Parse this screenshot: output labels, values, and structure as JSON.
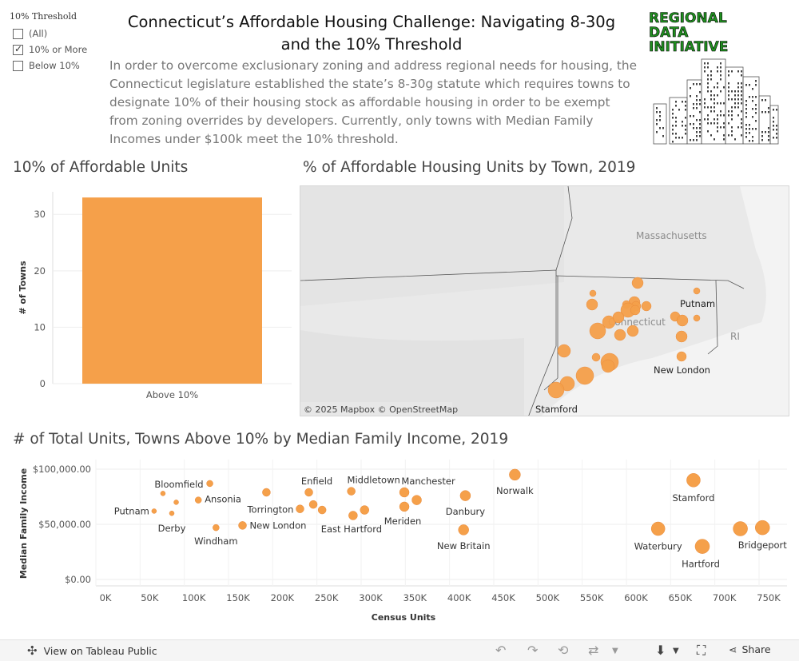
{
  "filter": {
    "title": "10% Threshold",
    "options": [
      {
        "label": "(All)",
        "checked": false
      },
      {
        "label": "10% or More",
        "checked": true
      },
      {
        "label": "Below 10%",
        "checked": false
      }
    ]
  },
  "header": {
    "title": "Connecticut’s Affordable Housing Challenge: Navigating 8-30g and the 10% Threshold",
    "intro": "In order to overcome exclusionary zoning and address regional needs for housing, the Connecticut legislature established the state’s 8-30g statute which requires towns to designate 10% of their housing stock as affordable housing in order to be exempt from zoning overrides by developers. Currently, only towns with Median Family Incomes under $100k meet the 10% threshold.",
    "logo_lines": [
      "REGIONAL",
      "DATA",
      "INITIATIVE"
    ]
  },
  "sections": {
    "bar_title": "10% of Affordable Units",
    "map_title": "% of Affordable Housing Units by Town, 2019",
    "scatter_title": "# of Total Units, Towns Above 10% by Median Family Income, 2019"
  },
  "colors": {
    "accent": "#f5a04a",
    "accent_dark": "#e8893a",
    "map_bg": "#e9e9e9"
  },
  "chart_data": [
    {
      "type": "bar",
      "categories": [
        "Above 10%"
      ],
      "values": [
        33
      ],
      "ylabel": "# of Towns",
      "xlabel": "",
      "ylim": [
        0,
        34
      ],
      "yticks": [
        0,
        10,
        20,
        30
      ]
    },
    {
      "type": "map",
      "labels": {
        "states": [
          "Massachusetts",
          "Connecticut",
          "RI"
        ],
        "towns": [
          "Putnam",
          "New London",
          "Stamford"
        ]
      },
      "attribution": "© 2025 Mapbox  © OpenStreetMap"
    },
    {
      "type": "scatter",
      "xlabel": "Census Units",
      "ylabel": "Median Family Income",
      "xlim": [
        0,
        750000
      ],
      "ylim": [
        0,
        100000
      ],
      "xticks": [
        "0K",
        "50K",
        "100K",
        "150K",
        "200K",
        "250K",
        "300K",
        "350K",
        "400K",
        "450K",
        "500K",
        "550K",
        "600K",
        "650K",
        "700K",
        "750K"
      ],
      "yticks": [
        "$0.00",
        "$50,000.00",
        "$100,000.00"
      ],
      "points": [
        {
          "x": 55000,
          "y": 62000,
          "size": 3,
          "label": "Putnam"
        },
        {
          "x": 65000,
          "y": 78000,
          "size": 3,
          "label": ""
        },
        {
          "x": 75000,
          "y": 60000,
          "size": 3,
          "label": "Derby"
        },
        {
          "x": 80000,
          "y": 70000,
          "size": 3,
          "label": ""
        },
        {
          "x": 105000,
          "y": 72000,
          "size": 4,
          "label": "Ansonia"
        },
        {
          "x": 118000,
          "y": 87000,
          "size": 4,
          "label": "Bloomfield"
        },
        {
          "x": 125000,
          "y": 47000,
          "size": 4,
          "label": "Windham"
        },
        {
          "x": 155000,
          "y": 49000,
          "size": 5,
          "label": "New London"
        },
        {
          "x": 182000,
          "y": 79000,
          "size": 5,
          "label": ""
        },
        {
          "x": 220000,
          "y": 64000,
          "size": 5,
          "label": "Torrington"
        },
        {
          "x": 230000,
          "y": 79000,
          "size": 5,
          "label": "Enfield"
        },
        {
          "x": 235000,
          "y": 68000,
          "size": 5,
          "label": ""
        },
        {
          "x": 245000,
          "y": 63000,
          "size": 5,
          "label": ""
        },
        {
          "x": 278000,
          "y": 80000,
          "size": 5,
          "label": "Middletown"
        },
        {
          "x": 280000,
          "y": 58000,
          "size": 5.5,
          "label": "East Hartford"
        },
        {
          "x": 293000,
          "y": 63000,
          "size": 5.5,
          "label": ""
        },
        {
          "x": 338000,
          "y": 79000,
          "size": 6,
          "label": "Manchester"
        },
        {
          "x": 338000,
          "y": 66000,
          "size": 6,
          "label": "Meriden"
        },
        {
          "x": 352000,
          "y": 72000,
          "size": 6,
          "label": ""
        },
        {
          "x": 405000,
          "y": 45000,
          "size": 6.5,
          "label": "New Britain"
        },
        {
          "x": 407000,
          "y": 76000,
          "size": 6.5,
          "label": "Danbury"
        },
        {
          "x": 463000,
          "y": 95000,
          "size": 7,
          "label": "Norwalk"
        },
        {
          "x": 625000,
          "y": 46000,
          "size": 8.5,
          "label": "Waterbury"
        },
        {
          "x": 665000,
          "y": 90000,
          "size": 8.5,
          "label": "Stamford"
        },
        {
          "x": 675000,
          "y": 30000,
          "size": 9,
          "label": "Hartford"
        },
        {
          "x": 718000,
          "y": 46000,
          "size": 9,
          "label": ""
        },
        {
          "x": 743000,
          "y": 47000,
          "size": 9,
          "label": "Bridgeport"
        }
      ]
    }
  ],
  "footer": {
    "view_label": "View on Tableau Public",
    "share_label": "Share"
  }
}
